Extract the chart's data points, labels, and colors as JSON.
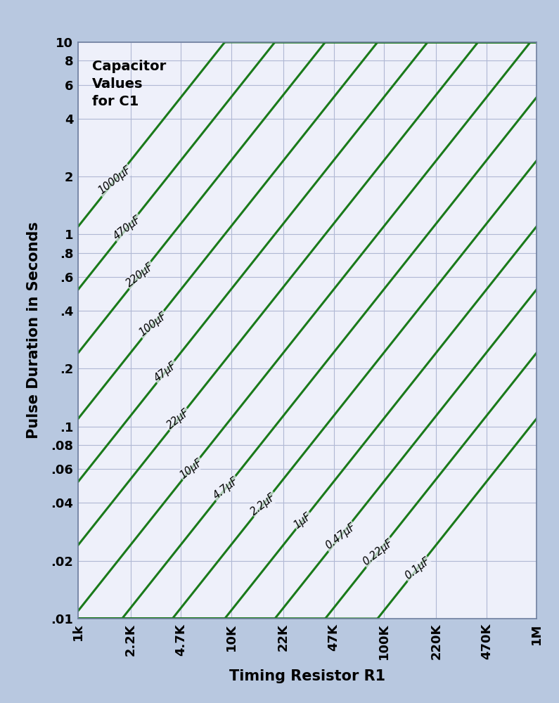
{
  "title": "Capacitor\nValues\nfor C1",
  "xlabel": "Timing Resistor R1",
  "ylabel": "Pulse Duration in Seconds",
  "background_color": "#b8c8e0",
  "plot_bg_color": "#eef0fa",
  "grid_color": "#b0b8d4",
  "line_color": "#1a7a1a",
  "line_width": 2.2,
  "x_min": 1000,
  "x_max": 1000000,
  "y_min": 0.01,
  "y_max": 10,
  "x_ticks": [
    1000,
    2200,
    4700,
    10000,
    22000,
    47000,
    100000,
    220000,
    470000,
    1000000
  ],
  "x_tick_labels": [
    "1k",
    "2.2K",
    "4.7K",
    "10K",
    "22K",
    "47K",
    "100K",
    "220K",
    "470K",
    "1M"
  ],
  "y_ticks": [
    0.01,
    0.02,
    0.04,
    0.06,
    0.08,
    0.1,
    0.2,
    0.4,
    0.6,
    0.8,
    1.0,
    2.0,
    4.0,
    6.0,
    8.0,
    10.0
  ],
  "y_tick_labels": [
    ".01",
    ".02",
    ".04",
    ".06",
    ".08",
    ".1",
    ".2",
    ".4",
    ".6",
    ".8",
    "1",
    "2",
    "4",
    "6",
    "8",
    "10"
  ],
  "capacitors_uF": [
    1000,
    470,
    220,
    100,
    47,
    22,
    10,
    4.7,
    2.2,
    1,
    0.47,
    0.22,
    0.1
  ],
  "capacitor_labels": [
    "1000μF",
    "470μF",
    "220μF",
    "100μF",
    "47μF",
    "22μF",
    "10μF",
    "4.7μF",
    "2.2μF",
    "1μF",
    "0.47μF",
    "0.22μF",
    "0.1μF"
  ],
  "formula_constant": 1.1,
  "label_rotation": 38,
  "label_fontsize": 10.5,
  "tick_fontsize": 13,
  "axis_label_fontsize": 15,
  "title_fontsize": 14
}
